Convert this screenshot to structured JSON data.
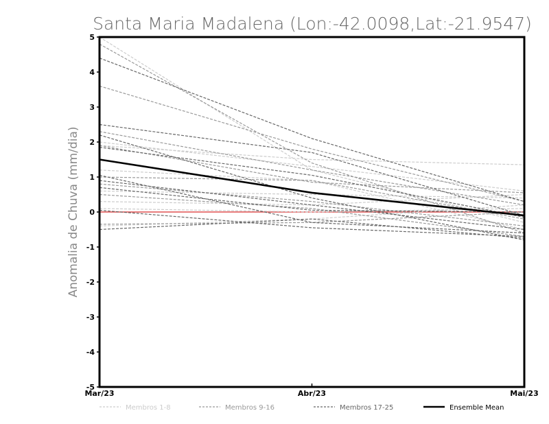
{
  "chart_data": {
    "type": "line",
    "title": "Santa Maria Madalena (Lon:-42.0098,Lat:-21.9547)",
    "xlabel": "",
    "ylabel": "Anomalia de Chuva (mm/dia)",
    "categories": [
      "Mar/23",
      "Abr/23",
      "Mai/23"
    ],
    "ylim": [
      -5,
      5
    ],
    "yticks": [
      5,
      4,
      3,
      2,
      1,
      0,
      -1,
      -2,
      -3,
      -4,
      -5
    ],
    "grid": false,
    "legend_position": "bottom",
    "legend": [
      {
        "label": "Membros 1-8",
        "color": "#cccccc",
        "style": "dashed"
      },
      {
        "label": "Membros 9-16",
        "color": "#999999",
        "style": "dashed"
      },
      {
        "label": "Membros 17-25",
        "color": "#666666",
        "style": "dashed"
      },
      {
        "label": "Ensemble Mean",
        "color": "#000000",
        "style": "solid"
      }
    ],
    "zero_line_color": "#e05050",
    "member_groups": [
      {
        "color": "#cccccc",
        "members": [
          [
            5.0,
            1.2,
            -0.3
          ],
          [
            1.9,
            1.5,
            1.35
          ],
          [
            2.0,
            1.3,
            0.6
          ],
          [
            0.3,
            0.2,
            0.5
          ],
          [
            0.6,
            0.5,
            0.4
          ],
          [
            -0.4,
            -0.2,
            0.2
          ],
          [
            0.1,
            0.0,
            0.1
          ],
          [
            1.2,
            0.9,
            -0.5
          ]
        ]
      },
      {
        "color": "#999999",
        "members": [
          [
            4.8,
            1.4,
            -0.6
          ],
          [
            3.6,
            1.8,
            0.3
          ],
          [
            2.3,
            1.2,
            0.2
          ],
          [
            1.0,
            0.9,
            -0.2
          ],
          [
            0.5,
            0.1,
            -0.7
          ],
          [
            -0.35,
            -0.3,
            0.0
          ],
          [
            0.8,
            0.3,
            -0.4
          ],
          [
            1.9,
            0.85,
            0.55
          ]
        ]
      },
      {
        "color": "#666666",
        "members": [
          [
            4.4,
            2.1,
            0.3
          ],
          [
            2.5,
            1.7,
            -0.1
          ],
          [
            2.2,
            0.4,
            -0.8
          ],
          [
            1.05,
            -0.3,
            -0.6
          ],
          [
            -0.5,
            -0.2,
            -0.75
          ],
          [
            0.7,
            0.05,
            0.0
          ],
          [
            1.85,
            1.05,
            -0.15
          ],
          [
            0.9,
            0.2,
            -0.5
          ],
          [
            0.05,
            -0.45,
            -0.7
          ]
        ]
      }
    ],
    "series": [
      {
        "name": "Ensemble Mean",
        "values": [
          1.5,
          0.55,
          -0.1
        ]
      }
    ]
  }
}
